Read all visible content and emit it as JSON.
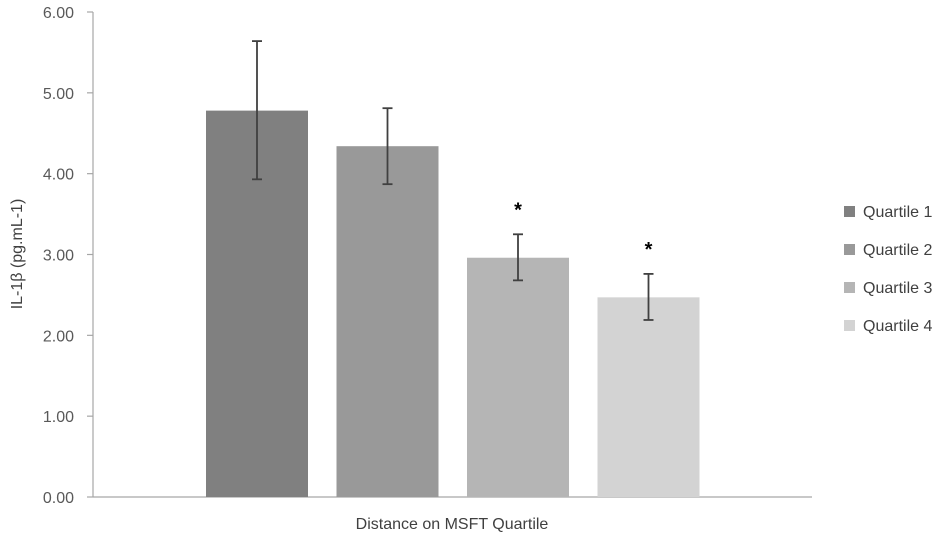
{
  "chart_data": {
    "type": "bar",
    "title": "",
    "xlabel": "Distance on MSFT Quartile",
    "ylabel": "IL-1β (pg.mL-1)",
    "ylim": [
      0,
      6
    ],
    "y_ticks": [
      "0.00",
      "1.00",
      "2.00",
      "3.00",
      "4.00",
      "5.00",
      "6.00"
    ],
    "grid": false,
    "legend_position": "right",
    "series": [
      {
        "name": "Quartile 1",
        "value": 4.78,
        "error_low": 3.93,
        "error_high": 5.64,
        "color": "#808080",
        "annotation": ""
      },
      {
        "name": "Quartile 2",
        "value": 4.34,
        "error_low": 3.87,
        "error_high": 4.81,
        "color": "#999999",
        "annotation": ""
      },
      {
        "name": "Quartile 3",
        "value": 2.96,
        "error_low": 2.68,
        "error_high": 3.25,
        "color": "#b5b5b5",
        "annotation": "*"
      },
      {
        "name": "Quartile 4",
        "value": 2.47,
        "error_low": 2.19,
        "error_high": 2.76,
        "color": "#d3d3d3",
        "annotation": "*"
      }
    ],
    "axis_color": "#a6a6a6",
    "error_bar_color": "#404040"
  }
}
